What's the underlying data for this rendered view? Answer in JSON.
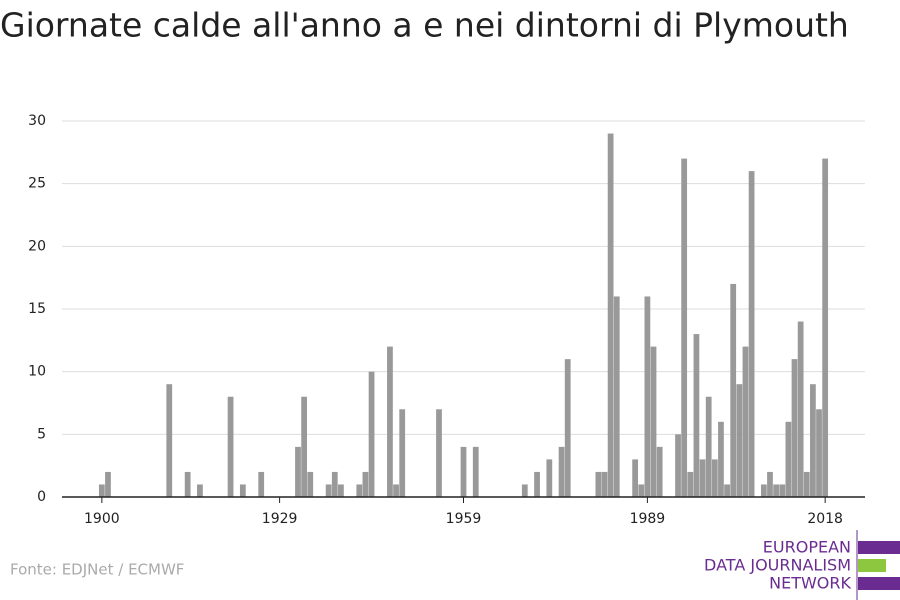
{
  "chart_data": {
    "type": "bar",
    "title": "Giornate calde all'anno a e nei dintorni di Plymouth",
    "source": "Fonte: EDJNet / ECMWF",
    "logo": [
      "EUROPEAN",
      "DATA JOURNALISM",
      "NETWORK"
    ],
    "color": "#999999",
    "x": [
      1900,
      1901,
      1911,
      1914,
      1916,
      1921,
      1923,
      1926,
      1932,
      1933,
      1934,
      1937,
      1938,
      1939,
      1942,
      1943,
      1944,
      1947,
      1948,
      1949,
      1955,
      1959,
      1961,
      1969,
      1971,
      1973,
      1975,
      1976,
      1981,
      1982,
      1983,
      1984,
      1987,
      1988,
      1989,
      1990,
      1991,
      1994,
      1995,
      1996,
      1997,
      1998,
      1999,
      2000,
      2001,
      2002,
      2003,
      2004,
      2005,
      2006,
      2008,
      2009,
      2010,
      2011,
      2012,
      2013,
      2014,
      2015,
      2016,
      2017,
      2018
    ],
    "values": [
      1,
      2,
      9,
      2,
      1,
      8,
      1,
      2,
      4,
      8,
      2,
      1,
      2,
      1,
      1,
      2,
      10,
      12,
      1,
      7,
      7,
      4,
      4,
      1,
      2,
      3,
      4,
      11,
      2,
      2,
      29,
      16,
      3,
      1,
      16,
      12,
      4,
      5,
      27,
      2,
      13,
      3,
      8,
      3,
      6,
      1,
      17,
      9,
      12,
      26,
      1,
      2,
      1,
      1,
      6,
      11,
      14,
      2,
      9,
      7,
      27
    ],
    "xlim": [
      1893.5,
      2024.5
    ],
    "xticks": [
      1900,
      1929,
      1959,
      1989,
      2018
    ],
    "ylim": [
      0,
      30
    ],
    "yticks": [
      0,
      5,
      10,
      15,
      20,
      25,
      30
    ],
    "grid": true
  }
}
